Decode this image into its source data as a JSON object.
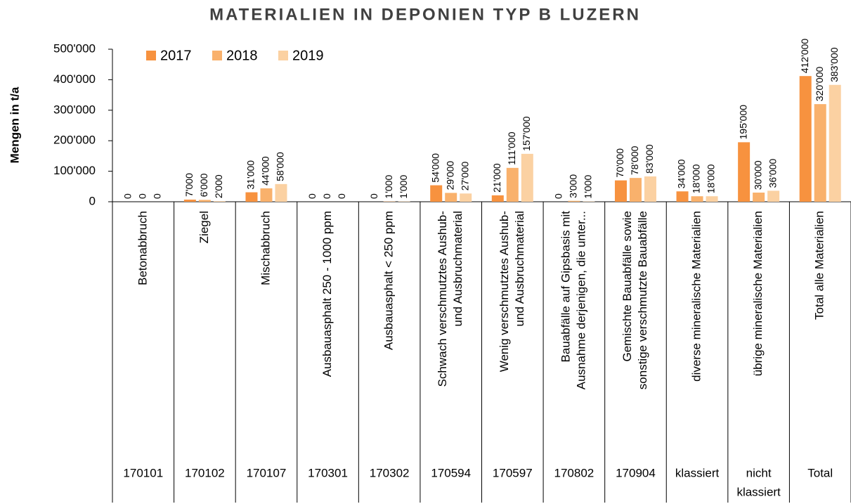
{
  "chart_data": {
    "type": "bar",
    "title": "MATERIALIEN IN DEPONIEN TYP B LUZERN",
    "y_label": "Mengen in t/a",
    "categories": [
      {
        "code": [
          "170101"
        ],
        "name": [
          "Betonabbruch"
        ]
      },
      {
        "code": [
          "170102"
        ],
        "name": [
          "Ziegel"
        ]
      },
      {
        "code": [
          "170107"
        ],
        "name": [
          "Mischabbruch"
        ]
      },
      {
        "code": [
          "170301"
        ],
        "name": [
          "Ausbauasphalt  250 - 1000 ppm"
        ]
      },
      {
        "code": [
          "170302"
        ],
        "name": [
          "Ausbauasphalt < 250 ppm"
        ]
      },
      {
        "code": [
          "170594"
        ],
        "name": [
          "Schwach verschmutztes Aushub-",
          "und Ausbruchmaterial"
        ]
      },
      {
        "code": [
          "170597"
        ],
        "name": [
          "Wenig verschmutztes Aushub-",
          "und Ausbruchmaterial"
        ]
      },
      {
        "code": [
          "170802"
        ],
        "name": [
          "Bauabfälle auf Gipsbasis mit",
          "Ausnahme derjenigen, die unter..."
        ]
      },
      {
        "code": [
          "170904"
        ],
        "name": [
          "Gemischte Bauabfälle sowie",
          "sonstige verschmutzte Bauabfälle"
        ]
      },
      {
        "code": [
          "klassiert"
        ],
        "name": [
          "diverse mineralische Materialien"
        ]
      },
      {
        "code": [
          "nicht",
          "klassiert"
        ],
        "name": [
          "übrige mineralische Materialien"
        ]
      },
      {
        "code": [
          "Total"
        ],
        "name": [
          "Total alle Materialien"
        ]
      }
    ],
    "series": [
      {
        "name": "2017",
        "color": "#f7923f",
        "values": [
          0,
          7000,
          31000,
          0,
          0,
          54000,
          21000,
          0,
          70000,
          34000,
          195000,
          412000
        ],
        "value_labels": [
          "0",
          "7'000",
          "31'000",
          "0",
          "0",
          "54'000",
          "21'000",
          "0",
          "70'000",
          "34'000",
          "195'000",
          "412'000"
        ]
      },
      {
        "name": "2018",
        "color": "#f9b16c",
        "values": [
          0,
          6000,
          44000,
          0,
          1000,
          29000,
          111000,
          3000,
          78000,
          18000,
          30000,
          320000
        ],
        "value_labels": [
          "0",
          "6'000",
          "44'000",
          "0",
          "1'000",
          "29'000",
          "111'000",
          "3'000",
          "78'000",
          "18'000",
          "30'000",
          "320'000"
        ]
      },
      {
        "name": "2019",
        "color": "#fbd1a2",
        "values": [
          0,
          2000,
          58000,
          0,
          1000,
          27000,
          157000,
          1000,
          83000,
          18000,
          36000,
          383000
        ],
        "value_labels": [
          "0",
          "2'000",
          "58'000",
          "0",
          "1'000",
          "27'000",
          "157'000",
          "1'000",
          "83'000",
          "18'000",
          "36'000",
          "383'000"
        ]
      }
    ],
    "ylim": [
      0,
      500000
    ],
    "yticks": [
      0,
      {
        "value": 100000,
        "label": "100'000"
      },
      {
        "value": 200000,
        "label": "200'000"
      },
      {
        "value": 300000,
        "label": "300'000"
      },
      {
        "value": 400000,
        "label": "400'000"
      },
      {
        "value": 500000,
        "label": "500'000"
      }
    ],
    "legend": "upper left",
    "grid": false
  }
}
